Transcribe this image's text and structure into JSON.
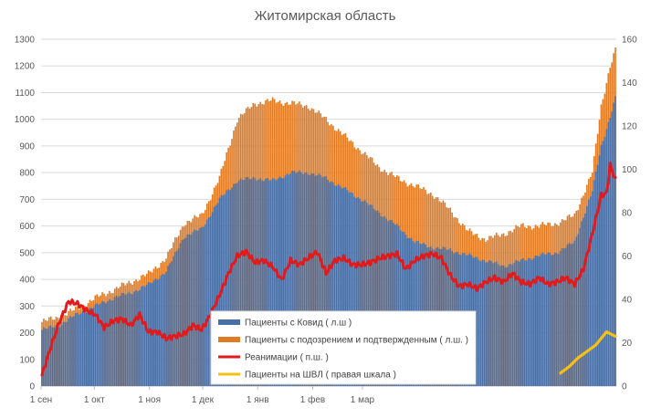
{
  "chart_data": {
    "type": "bar",
    "title": "Житомирская область",
    "x_ticks": [
      "1 сен",
      "1 окт",
      "1 ноя",
      "1 дек",
      "1 янв",
      "1 фев",
      "1 мар"
    ],
    "left_axis": {
      "ylim": [
        0,
        1300
      ],
      "ticks": [
        "0",
        "100",
        "200",
        "300",
        "400",
        "500",
        "600",
        "700",
        "800",
        "900",
        "1000",
        "1100",
        "1200",
        "1300"
      ]
    },
    "right_axis": {
      "ylim": [
        0,
        160
      ],
      "ticks": [
        "0",
        "20",
        "40",
        "60",
        "80",
        "100",
        "120",
        "140",
        "160"
      ]
    },
    "series": [
      {
        "name": "Пациенты с Ковид ( л.ш )",
        "type": "bar",
        "axis": "left",
        "color": "#4a6fa5",
        "anchors": [
          [
            0,
            210
          ],
          [
            10,
            230
          ],
          [
            20,
            270
          ],
          [
            30,
            300
          ],
          [
            40,
            330
          ],
          [
            50,
            350
          ],
          [
            60,
            380
          ],
          [
            70,
            430
          ],
          [
            80,
            560
          ],
          [
            90,
            590
          ],
          [
            100,
            700
          ],
          [
            110,
            770
          ],
          [
            120,
            780
          ],
          [
            130,
            770
          ],
          [
            140,
            800
          ],
          [
            150,
            800
          ],
          [
            160,
            780
          ],
          [
            170,
            740
          ],
          [
            180,
            700
          ],
          [
            190,
            650
          ],
          [
            200,
            600
          ],
          [
            210,
            540
          ],
          [
            220,
            520
          ],
          [
            230,
            510
          ],
          [
            240,
            490
          ],
          [
            250,
            470
          ],
          [
            260,
            450
          ],
          [
            270,
            470
          ],
          [
            280,
            490
          ],
          [
            290,
            500
          ],
          [
            300,
            540
          ],
          [
            310,
            730
          ],
          [
            315,
            900
          ],
          [
            320,
            1010
          ],
          [
            323,
            1080
          ]
        ]
      },
      {
        "name": "Пациенты с подозрением и подтвержденным ( л.ш. )",
        "type": "bar",
        "axis": "left",
        "color": "#e07b25",
        "anchors": [
          [
            0,
            240
          ],
          [
            10,
            260
          ],
          [
            20,
            290
          ],
          [
            30,
            330
          ],
          [
            40,
            360
          ],
          [
            50,
            390
          ],
          [
            60,
            420
          ],
          [
            70,
            480
          ],
          [
            80,
            610
          ],
          [
            90,
            640
          ],
          [
            100,
            780
          ],
          [
            110,
            1000
          ],
          [
            120,
            1060
          ],
          [
            130,
            1070
          ],
          [
            140,
            1060
          ],
          [
            150,
            1050
          ],
          [
            160,
            1000
          ],
          [
            170,
            940
          ],
          [
            180,
            880
          ],
          [
            190,
            820
          ],
          [
            200,
            780
          ],
          [
            210,
            750
          ],
          [
            220,
            720
          ],
          [
            230,
            660
          ],
          [
            240,
            580
          ],
          [
            250,
            550
          ],
          [
            260,
            570
          ],
          [
            270,
            600
          ],
          [
            280,
            600
          ],
          [
            290,
            610
          ],
          [
            300,
            640
          ],
          [
            310,
            800
          ],
          [
            315,
            1050
          ],
          [
            320,
            1200
          ],
          [
            323,
            1260
          ]
        ]
      },
      {
        "name": "Реанимации ( п.ш. )",
        "type": "line",
        "axis": "right",
        "color": "#e31a1c",
        "anchors": [
          [
            0,
            5
          ],
          [
            5,
            18
          ],
          [
            10,
            30
          ],
          [
            15,
            39
          ],
          [
            20,
            38
          ],
          [
            25,
            35
          ],
          [
            30,
            33
          ],
          [
            35,
            27
          ],
          [
            40,
            30
          ],
          [
            45,
            31
          ],
          [
            50,
            28
          ],
          [
            55,
            33
          ],
          [
            60,
            25
          ],
          [
            65,
            25
          ],
          [
            70,
            22
          ],
          [
            75,
            23
          ],
          [
            80,
            24
          ],
          [
            85,
            28
          ],
          [
            90,
            26
          ],
          [
            95,
            33
          ],
          [
            100,
            42
          ],
          [
            105,
            52
          ],
          [
            110,
            60
          ],
          [
            115,
            62
          ],
          [
            120,
            57
          ],
          [
            125,
            58
          ],
          [
            130,
            55
          ],
          [
            135,
            49
          ],
          [
            140,
            58
          ],
          [
            145,
            56
          ],
          [
            150,
            59
          ],
          [
            155,
            62
          ],
          [
            160,
            52
          ],
          [
            165,
            58
          ],
          [
            170,
            59
          ],
          [
            175,
            56
          ],
          [
            180,
            56
          ],
          [
            185,
            57
          ],
          [
            190,
            59
          ],
          [
            195,
            60
          ],
          [
            200,
            61
          ],
          [
            205,
            54
          ],
          [
            210,
            58
          ],
          [
            215,
            60
          ],
          [
            220,
            61
          ],
          [
            225,
            59
          ],
          [
            230,
            51
          ],
          [
            235,
            46
          ],
          [
            240,
            47
          ],
          [
            245,
            45
          ],
          [
            250,
            48
          ],
          [
            255,
            50
          ],
          [
            260,
            48
          ],
          [
            265,
            52
          ],
          [
            270,
            48
          ],
          [
            275,
            47
          ],
          [
            280,
            50
          ],
          [
            285,
            47
          ],
          [
            290,
            48
          ],
          [
            295,
            50
          ],
          [
            300,
            47
          ],
          [
            305,
            54
          ],
          [
            310,
            70
          ],
          [
            315,
            88
          ],
          [
            318,
            89
          ],
          [
            320,
            102
          ],
          [
            323,
            95
          ]
        ]
      },
      {
        "name": "Пациенты на ШВЛ ( правая шкала )",
        "type": "line",
        "axis": "right",
        "color": "#f4c016",
        "anchors": [
          [
            292,
            6
          ],
          [
            297,
            9
          ],
          [
            302,
            13
          ],
          [
            307,
            16
          ],
          [
            312,
            19
          ],
          [
            316,
            23
          ],
          [
            318,
            25
          ],
          [
            323,
            23
          ]
        ]
      }
    ],
    "legend": {
      "placement": "bottom-center"
    }
  }
}
